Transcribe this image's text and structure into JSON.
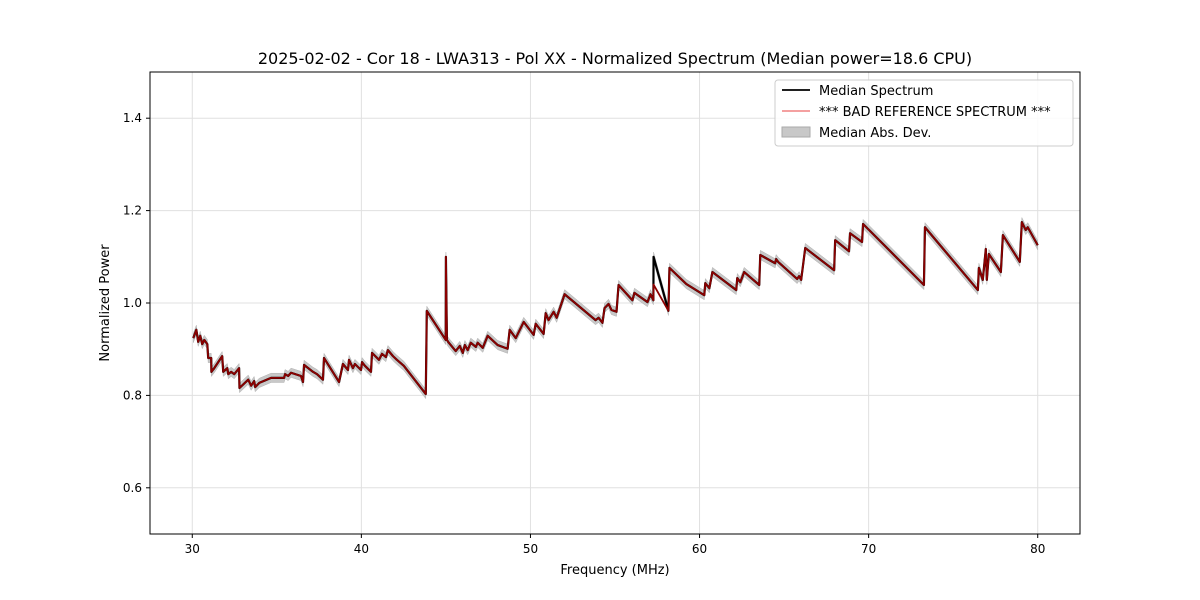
{
  "chart_data": {
    "type": "line",
    "title": "2025-02-02 - Cor 18 - LWA313 - Pol XX - Normalized Spectrum (Median power=18.6 CPU)",
    "xlabel": "Frequency (MHz)",
    "ylabel": "Normalized Power",
    "xlim": [
      27.5,
      82.5
    ],
    "ylim": [
      0.5,
      1.5
    ],
    "xticks": [
      30,
      40,
      50,
      60,
      70,
      80
    ],
    "yticks": [
      0.6,
      0.8,
      1.0,
      1.2,
      1.4
    ],
    "xtick_labels": [
      "30",
      "40",
      "50",
      "60",
      "70",
      "80"
    ],
    "ytick_labels": [
      "0.6",
      "0.8",
      "1.0",
      "1.2",
      "1.4"
    ],
    "grid": true,
    "legend_position": "top-right",
    "legend": [
      "Median Spectrum",
      "*** BAD REFERENCE SPECTRUM ***",
      "Median Abs. Dev."
    ],
    "colors": {
      "median": "#000000",
      "reference": "#8b0000",
      "reference_legend": "#f08080",
      "mad": "#c8c8c8"
    },
    "mad_halfwidth": 0.01,
    "freq": [
      30.06,
      30.24,
      30.35,
      30.47,
      30.59,
      30.71,
      30.89,
      30.94,
      31.12,
      31.13,
      31.3,
      31.77,
      31.83,
      32.07,
      32.13,
      32.3,
      32.48,
      32.77,
      32.79,
      33.31,
      33.48,
      33.66,
      33.72,
      33.96,
      34.66,
      35.43,
      35.49,
      35.67,
      35.84,
      36.43,
      36.55,
      36.61,
      37.14,
      37.38,
      37.73,
      37.79,
      38.68,
      38.91,
      39.21,
      39.27,
      39.5,
      39.62,
      39.98,
      40.04,
      40.21,
      40.57,
      40.63,
      41.04,
      41.22,
      41.45,
      41.57,
      41.87,
      42.1,
      42.51,
      43.81,
      43.87,
      44.99,
      45.0,
      45.06,
      45.17,
      45.58,
      45.82,
      46.0,
      46.12,
      46.29,
      46.47,
      46.77,
      46.88,
      47.18,
      47.47,
      48.06,
      48.65,
      48.77,
      49.13,
      49.6,
      50.19,
      50.31,
      50.78,
      50.9,
      51.07,
      51.37,
      51.55,
      52.02,
      53.85,
      54.03,
      54.26,
      54.38,
      54.62,
      54.79,
      55.09,
      55.21,
      56.03,
      56.15,
      56.92,
      57.1,
      57.27,
      57.28,
      58.16,
      58.22,
      59.22,
      59.4,
      60.28,
      60.34,
      60.58,
      60.76,
      62.17,
      62.23,
      62.41,
      62.64,
      63.53,
      63.59,
      64.47,
      64.53,
      64.65,
      65.77,
      65.89,
      66.01,
      66.25,
      67.96,
      68.02,
      68.84,
      68.9,
      69.61,
      69.67,
      73.27,
      73.33,
      76.46,
      76.52,
      76.75,
      76.93,
      76.99,
      77.11,
      77.82,
      77.94,
      78.94,
      79.06,
      79.29,
      79.41,
      80.0
    ],
    "median": [
      0.924,
      0.942,
      0.916,
      0.929,
      0.911,
      0.92,
      0.911,
      0.881,
      0.881,
      0.851,
      0.859,
      0.885,
      0.851,
      0.859,
      0.846,
      0.851,
      0.846,
      0.859,
      0.816,
      0.834,
      0.821,
      0.831,
      0.818,
      0.827,
      0.838,
      0.838,
      0.846,
      0.842,
      0.849,
      0.842,
      0.829,
      0.866,
      0.851,
      0.846,
      0.834,
      0.881,
      0.829,
      0.868,
      0.855,
      0.877,
      0.859,
      0.868,
      0.855,
      0.872,
      0.864,
      0.851,
      0.892,
      0.877,
      0.89,
      0.883,
      0.898,
      0.885,
      0.877,
      0.864,
      0.803,
      0.983,
      0.92,
      1.1,
      0.92,
      0.914,
      0.896,
      0.907,
      0.892,
      0.909,
      0.898,
      0.914,
      0.905,
      0.914,
      0.903,
      0.929,
      0.909,
      0.901,
      0.942,
      0.924,
      0.959,
      0.931,
      0.955,
      0.933,
      0.978,
      0.963,
      0.981,
      0.968,
      1.019,
      0.963,
      0.968,
      0.957,
      0.989,
      0.998,
      0.985,
      0.981,
      1.039,
      1.006,
      1.022,
      1.002,
      1.019,
      1.006,
      1.1,
      0.983,
      1.076,
      1.041,
      1.037,
      1.017,
      1.043,
      1.032,
      1.067,
      1.028,
      1.054,
      1.045,
      1.067,
      1.039,
      1.104,
      1.086,
      1.095,
      1.089,
      1.052,
      1.058,
      1.05,
      1.119,
      1.071,
      1.136,
      1.112,
      1.151,
      1.132,
      1.171,
      1.039,
      1.164,
      1.028,
      1.076,
      1.05,
      1.117,
      1.05,
      1.106,
      1.067,
      1.147,
      1.089,
      1.175,
      1.158,
      1.164,
      1.125
    ],
    "reference": [
      0.924,
      0.942,
      0.916,
      0.929,
      0.911,
      0.92,
      0.911,
      0.881,
      0.881,
      0.851,
      0.859,
      0.885,
      0.851,
      0.859,
      0.846,
      0.851,
      0.846,
      0.859,
      0.816,
      0.834,
      0.821,
      0.831,
      0.818,
      0.827,
      0.838,
      0.838,
      0.846,
      0.842,
      0.849,
      0.842,
      0.829,
      0.866,
      0.851,
      0.846,
      0.834,
      0.881,
      0.829,
      0.868,
      0.855,
      0.877,
      0.859,
      0.868,
      0.855,
      0.872,
      0.864,
      0.851,
      0.892,
      0.877,
      0.89,
      0.883,
      0.898,
      0.885,
      0.877,
      0.864,
      0.803,
      0.983,
      0.92,
      1.1,
      0.92,
      0.914,
      0.896,
      0.907,
      0.892,
      0.909,
      0.898,
      0.914,
      0.905,
      0.914,
      0.903,
      0.929,
      0.909,
      0.901,
      0.942,
      0.924,
      0.959,
      0.931,
      0.955,
      0.933,
      0.978,
      0.963,
      0.981,
      0.968,
      1.019,
      0.963,
      0.968,
      0.957,
      0.989,
      0.998,
      0.985,
      0.981,
      1.039,
      1.006,
      1.022,
      1.002,
      1.019,
      1.006,
      1.04,
      0.983,
      1.076,
      1.041,
      1.037,
      1.017,
      1.043,
      1.032,
      1.067,
      1.028,
      1.054,
      1.045,
      1.067,
      1.039,
      1.104,
      1.086,
      1.095,
      1.089,
      1.052,
      1.058,
      1.05,
      1.119,
      1.071,
      1.136,
      1.112,
      1.151,
      1.132,
      1.171,
      1.039,
      1.164,
      1.028,
      1.076,
      1.05,
      1.117,
      1.05,
      1.106,
      1.067,
      1.147,
      1.089,
      1.175,
      1.158,
      1.164,
      1.125
    ]
  }
}
